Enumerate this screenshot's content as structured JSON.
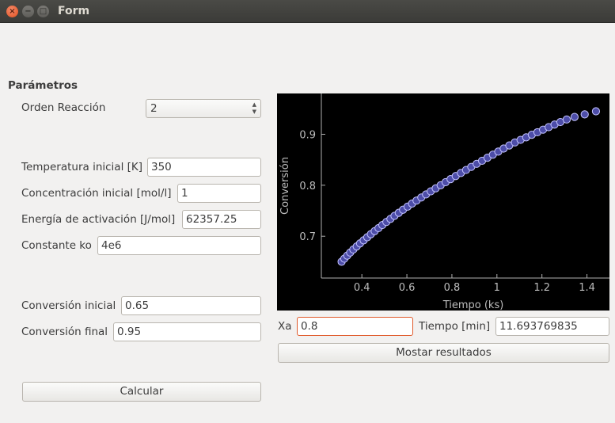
{
  "window": {
    "title": "Form"
  },
  "parametros": {
    "heading": "Parámetros",
    "orden_label": "Orden Reacción",
    "orden_value": "2",
    "temp_label": "Temperatura inicial [K]",
    "temp_value": "350",
    "conc_label": "Concentración inicial [mol/l]",
    "conc_value": "1",
    "energia_label": "Energía de activación [J/mol]",
    "energia_value": "62357.25",
    "ko_label": "Constante ko",
    "ko_value": "4e6",
    "xi_label": "Conversión inicial",
    "xi_value": "0.65",
    "xf_label": "Conversión final",
    "xf_value": "0.95",
    "calcular_label": "Calcular"
  },
  "results": {
    "xa_label": "Xa",
    "xa_value": "0.8",
    "tiempo_label": "Tiempo [min]",
    "tiempo_value": "11.693769835",
    "mostrar_label": "Mostar resultados"
  },
  "colors": {
    "marker_fill": "#4d4da8",
    "marker_edge": "#c4c4ff",
    "plot_bg": "#000000",
    "focus": "#e05a2b"
  },
  "chart_data": {
    "type": "scatter",
    "xlabel": "Tiempo (ks)",
    "ylabel": "Conversión",
    "xlim": [
      0.22,
      1.5
    ],
    "ylim": [
      0.618,
      0.98
    ],
    "xticks": [
      0.4,
      0.6,
      0.8,
      1.0,
      1.2,
      1.4
    ],
    "xtick_labels": [
      "0.4",
      "0.6",
      "0.8",
      "1",
      "1.2",
      "1.4"
    ],
    "yticks": [
      0.7,
      0.8,
      0.9
    ],
    "ytick_labels": [
      "0.7",
      "0.8",
      "0.9"
    ],
    "grid": false,
    "series": [
      {
        "x": [
          0.31,
          0.322,
          0.335,
          0.348,
          0.362,
          0.377,
          0.392,
          0.408,
          0.424,
          0.44,
          0.457,
          0.474,
          0.491,
          0.509,
          0.527,
          0.545,
          0.564,
          0.583,
          0.603,
          0.623,
          0.643,
          0.664,
          0.685,
          0.706,
          0.728,
          0.75,
          0.772,
          0.794,
          0.817,
          0.84,
          0.863,
          0.886,
          0.91,
          0.934,
          0.958,
          0.982,
          1.006,
          1.03,
          1.055,
          1.08,
          1.105,
          1.13,
          1.155,
          1.18,
          1.205,
          1.23,
          1.256,
          1.282,
          1.31,
          1.345,
          1.39,
          1.44
        ],
        "y": [
          0.65,
          0.656,
          0.662,
          0.668,
          0.674,
          0.68,
          0.686,
          0.692,
          0.698,
          0.704,
          0.71,
          0.716,
          0.722,
          0.728,
          0.734,
          0.74,
          0.746,
          0.752,
          0.758,
          0.764,
          0.77,
          0.776,
          0.782,
          0.788,
          0.794,
          0.8,
          0.806,
          0.812,
          0.818,
          0.824,
          0.83,
          0.836,
          0.842,
          0.848,
          0.854,
          0.86,
          0.866,
          0.872,
          0.878,
          0.884,
          0.889,
          0.894,
          0.899,
          0.904,
          0.909,
          0.914,
          0.919,
          0.924,
          0.929,
          0.934,
          0.939,
          0.945
        ]
      }
    ]
  }
}
